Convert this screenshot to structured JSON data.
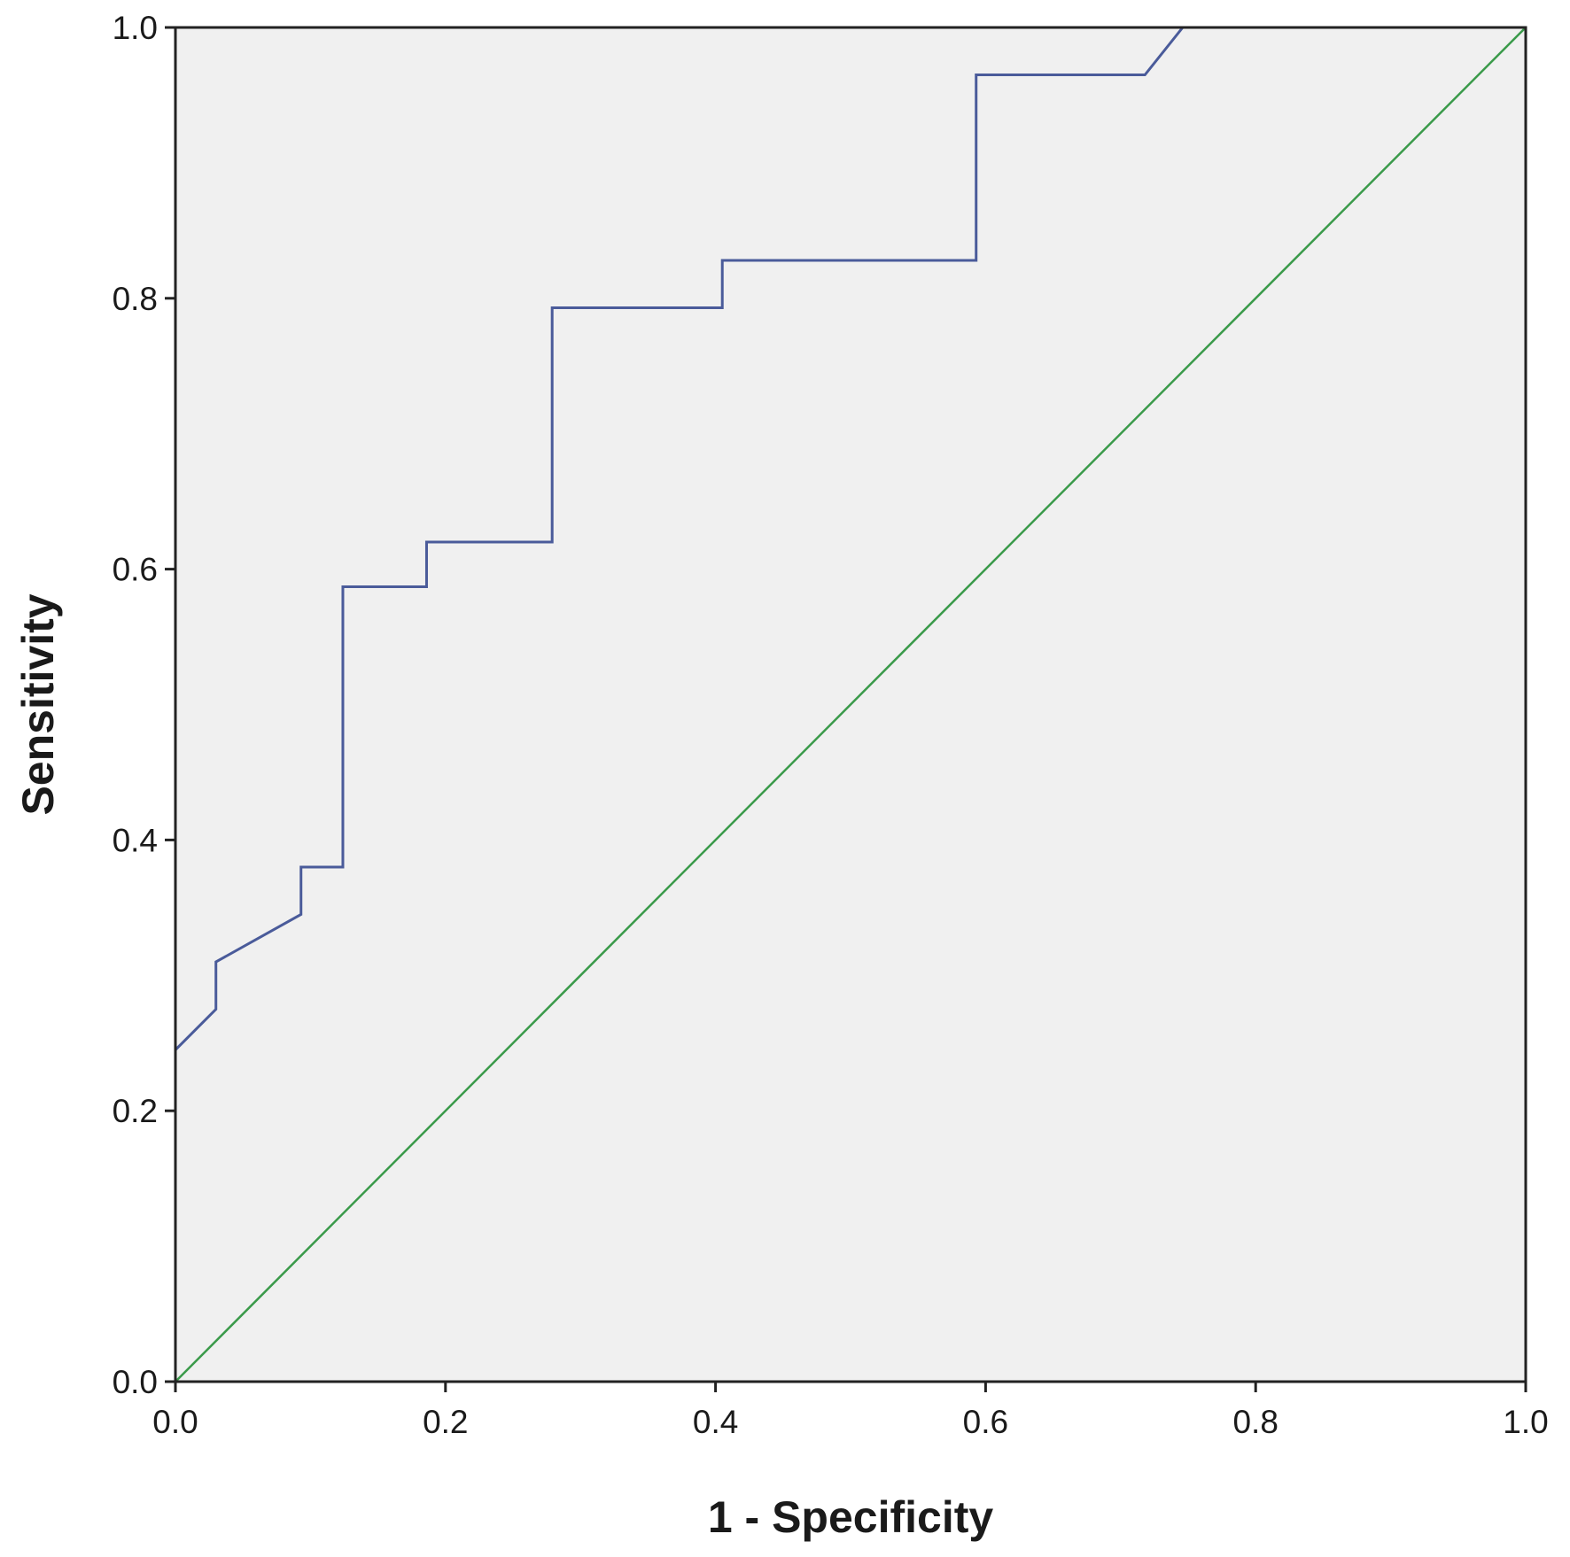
{
  "chart_data": {
    "type": "line",
    "xlabel": "1 - Specificity",
    "ylabel": "Sensitivity",
    "xlim": [
      0,
      1
    ],
    "ylim": [
      0,
      1
    ],
    "x_ticks": [
      "0.0",
      "0.2",
      "0.4",
      "0.6",
      "0.8",
      "1.0"
    ],
    "y_ticks": [
      "0.0",
      "0.2",
      "0.4",
      "0.6",
      "0.8",
      "1.0"
    ],
    "grid": false,
    "legend": "none",
    "series": [
      {
        "color": "#4a5b9a",
        "points": [
          [
            0.0,
            0.0
          ],
          [
            0.0,
            0.245
          ],
          [
            0.03,
            0.275
          ],
          [
            0.03,
            0.31
          ],
          [
            0.093,
            0.345
          ],
          [
            0.093,
            0.38
          ],
          [
            0.124,
            0.38
          ],
          [
            0.124,
            0.587
          ],
          [
            0.186,
            0.587
          ],
          [
            0.186,
            0.62
          ],
          [
            0.279,
            0.62
          ],
          [
            0.279,
            0.793
          ],
          [
            0.405,
            0.793
          ],
          [
            0.405,
            0.828
          ],
          [
            0.593,
            0.828
          ],
          [
            0.593,
            0.965
          ],
          [
            0.718,
            0.965
          ],
          [
            0.746,
            1.0
          ],
          [
            1.0,
            1.0
          ]
        ]
      },
      {
        "color": "#3a9a4a",
        "points": [
          [
            0.0,
            0.0
          ],
          [
            1.0,
            1.0
          ]
        ]
      }
    ],
    "background": "#f0f0f0"
  }
}
